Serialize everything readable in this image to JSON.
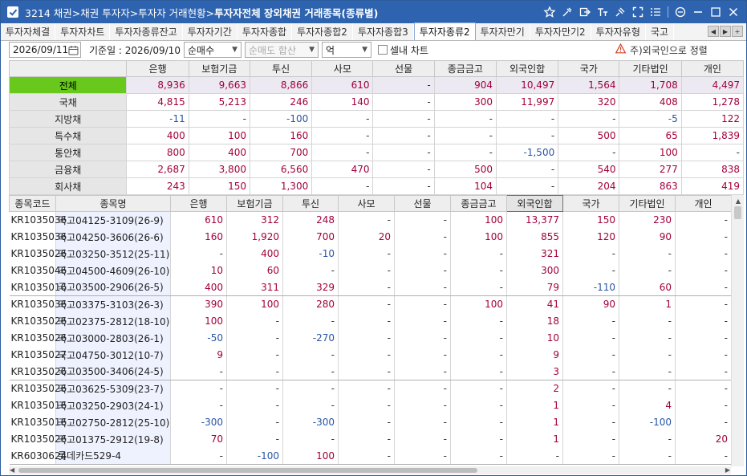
{
  "window": {
    "title_prefix": "3214 채권>채권 투자자>투자자 거래현황>",
    "title_bold": "투자자전체 장외채권 거래종목(종류별)"
  },
  "tabs": [
    "투자자체결",
    "투자자차트",
    "투자자종류잔고",
    "투자자기간",
    "투자자종합",
    "투자자종합2",
    "투자자종합3",
    "투자자종류2",
    "투자자만기",
    "투자자만기2",
    "투자자유형",
    "국고"
  ],
  "active_tab": 7,
  "toolbar": {
    "date": "2026/09/11",
    "base_date_label": "기준일 : 2026/09/10",
    "type_select": "순매수",
    "order_select": "순매도 합산",
    "unit_select": "억",
    "cell_chart_label": "셀내 차트",
    "note": "주)외국인으로 정렬"
  },
  "summary": {
    "headers": [
      "",
      "은행",
      "보험기금",
      "투신",
      "사모",
      "선물",
      "종금금고",
      "외국인합",
      "국가",
      "기타법인",
      "개인"
    ],
    "rows": [
      {
        "label": "전체",
        "values": [
          "8,936",
          "9,663",
          "8,866",
          "610",
          "-",
          "904",
          "10,497",
          "1,564",
          "1,708",
          "4,497"
        ]
      },
      {
        "label": "국채",
        "values": [
          "4,815",
          "5,213",
          "246",
          "140",
          "-",
          "300",
          "11,997",
          "320",
          "408",
          "1,278"
        ]
      },
      {
        "label": "지방채",
        "values": [
          "-11",
          "-",
          "-100",
          "-",
          "-",
          "-",
          "-",
          "-",
          "-5",
          "122"
        ]
      },
      {
        "label": "특수채",
        "values": [
          "400",
          "100",
          "160",
          "-",
          "-",
          "-",
          "-",
          "500",
          "65",
          "1,839"
        ]
      },
      {
        "label": "통안채",
        "values": [
          "800",
          "400",
          "700",
          "-",
          "-",
          "-",
          "-1,500",
          "-",
          "100",
          "-"
        ]
      },
      {
        "label": "금융채",
        "values": [
          "2,687",
          "3,800",
          "6,560",
          "470",
          "-",
          "500",
          "-",
          "540",
          "277",
          "838"
        ]
      },
      {
        "label": "회사채",
        "values": [
          "243",
          "150",
          "1,300",
          "-",
          "-",
          "104",
          "-",
          "204",
          "863",
          "419"
        ]
      }
    ]
  },
  "detail": {
    "headers": [
      "종목코드",
      "종목명",
      "은행",
      "보험기금",
      "투신",
      "사모",
      "선물",
      "종금금고",
      "외국인합",
      "국가",
      "기타법인",
      "개인"
    ],
    "rows": [
      {
        "code": "KR1035036",
        "name": "국고04125-3109(26-9)",
        "values": [
          "610",
          "312",
          "248",
          "-",
          "-",
          "100",
          "13,377",
          "150",
          "230",
          "-"
        ]
      },
      {
        "code": "KR1035036",
        "name": "국고04250-3606(26-6)",
        "values": [
          "160",
          "1,920",
          "700",
          "20",
          "-",
          "100",
          "855",
          "120",
          "90",
          "-"
        ]
      },
      {
        "code": "KR1035026",
        "name": "국고03250-3512(25-11)",
        "values": [
          "-",
          "400",
          "-10",
          "-",
          "-",
          "-",
          "321",
          "-",
          "-",
          "-"
        ]
      },
      {
        "code": "KR1035046",
        "name": "국고04500-4609(26-10)",
        "values": [
          "10",
          "60",
          "-",
          "-",
          "-",
          "-",
          "300",
          "-",
          "-",
          "-"
        ]
      },
      {
        "code": "KR1035016",
        "name": "국고03500-2906(26-5)",
        "values": [
          "400",
          "311",
          "329",
          "-",
          "-",
          "-",
          "79",
          "-110",
          "60",
          "-"
        ]
      },
      {
        "code": "KR1035036",
        "name": "국고03375-3103(26-3)",
        "values": [
          "390",
          "100",
          "280",
          "-",
          "-",
          "100",
          "41",
          "90",
          "1",
          "-"
        ]
      },
      {
        "code": "KR1035026",
        "name": "국고02375-2812(18-10)",
        "values": [
          "100",
          "-",
          "-",
          "-",
          "-",
          "-",
          "18",
          "-",
          "-",
          "-"
        ]
      },
      {
        "code": "KR1035026",
        "name": "국고03000-2803(26-1)",
        "values": [
          "-50",
          "-",
          "-270",
          "-",
          "-",
          "-",
          "10",
          "-",
          "-",
          "-"
        ]
      },
      {
        "code": "KR1035027",
        "name": "국고04750-3012(10-7)",
        "values": [
          "9",
          "-",
          "-",
          "-",
          "-",
          "-",
          "9",
          "-",
          "-",
          "-"
        ]
      },
      {
        "code": "KR1035026",
        "name": "국고03500-3406(24-5)",
        "values": [
          "-",
          "-",
          "-",
          "-",
          "-",
          "-",
          "3",
          "-",
          "-",
          "-"
        ]
      },
      {
        "code": "KR1035026",
        "name": "국고03625-5309(23-7)",
        "values": [
          "-",
          "-",
          "-",
          "-",
          "-",
          "-",
          "2",
          "-",
          "-",
          "-"
        ]
      },
      {
        "code": "KR1035016",
        "name": "국고03250-2903(24-1)",
        "values": [
          "-",
          "-",
          "-",
          "-",
          "-",
          "-",
          "1",
          "-",
          "4",
          "-"
        ]
      },
      {
        "code": "KR1035016",
        "name": "국고02750-2812(25-10)",
        "values": [
          "-300",
          "-",
          "-300",
          "-",
          "-",
          "-",
          "1",
          "-",
          "-100",
          "-"
        ]
      },
      {
        "code": "KR1035026",
        "name": "국고01375-2912(19-8)",
        "values": [
          "70",
          "-",
          "-",
          "-",
          "-",
          "-",
          "1",
          "-",
          "-",
          "20"
        ]
      },
      {
        "code": "KR6030624",
        "name": "롯데카드529-4",
        "values": [
          "-",
          "-100",
          "100",
          "-",
          "-",
          "-",
          "-",
          "-",
          "-",
          "-"
        ]
      }
    ]
  },
  "colors": {
    "titlebar": "#2e63b0",
    "positive": "#a3003c",
    "negative": "#2855a6",
    "selected_row_header": "#68c81c",
    "name_column_bg": "#eef2ff"
  },
  "icons": [
    "checkbox-icon",
    "star-icon",
    "tool-icon",
    "export-icon",
    "text-size-icon",
    "pin-icon",
    "expand-icon",
    "menu-icon",
    "zoom-out-icon",
    "minimize-icon",
    "maximize-icon",
    "close-icon",
    "calendar-icon",
    "warning-icon"
  ]
}
